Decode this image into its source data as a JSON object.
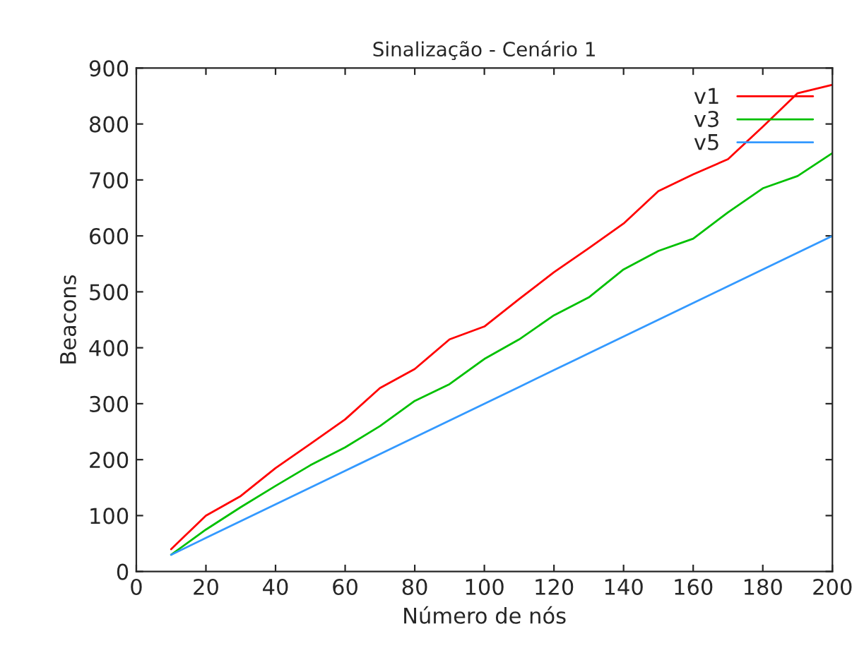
{
  "chart_data": {
    "type": "line",
    "title": "Sinalização - Cenário 1",
    "xlabel": "Número de nós",
    "ylabel": "Beacons",
    "x": [
      10,
      20,
      30,
      40,
      50,
      60,
      70,
      80,
      90,
      100,
      110,
      120,
      130,
      140,
      150,
      160,
      170,
      180,
      190,
      200
    ],
    "series": [
      {
        "name": "v1",
        "color": "#ff0000",
        "values": [
          40,
          100,
          135,
          185,
          228,
          272,
          328,
          362,
          415,
          438,
          487,
          535,
          578,
          622,
          680,
          710,
          737,
          795,
          855,
          870
        ]
      },
      {
        "name": "v3",
        "color": "#00c000",
        "values": [
          30,
          75,
          115,
          153,
          190,
          222,
          260,
          305,
          335,
          380,
          415,
          458,
          490,
          540,
          573,
          595,
          642,
          685,
          707,
          748
        ]
      },
      {
        "name": "v5",
        "color": "#3399ff",
        "values": [
          30,
          60,
          90,
          120,
          150,
          180,
          210,
          240,
          270,
          300,
          330,
          360,
          390,
          420,
          450,
          480,
          510,
          540,
          570,
          600
        ]
      }
    ],
    "xlim": [
      0,
      200
    ],
    "xticks": [
      0,
      20,
      40,
      60,
      80,
      100,
      120,
      140,
      160,
      180,
      200
    ],
    "ylim": [
      0,
      900
    ],
    "yticks": [
      0,
      100,
      200,
      300,
      400,
      500,
      600,
      700,
      800,
      900
    ],
    "grid": false,
    "legend": "top right",
    "marker": "none",
    "line_style": "solid"
  }
}
